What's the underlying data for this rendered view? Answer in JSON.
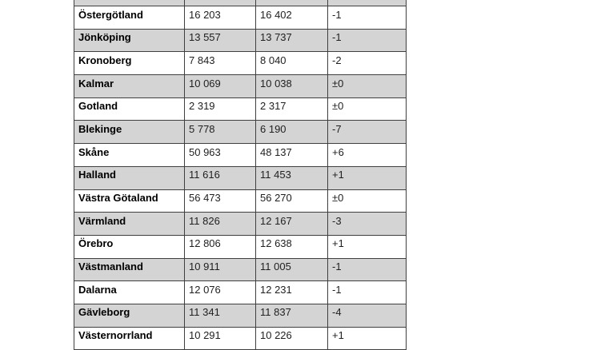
{
  "table": {
    "rows": [
      {
        "region": "Östergötland",
        "value_1": "16 203",
        "value_2": "16 402",
        "change": "-1"
      },
      {
        "region": "Jönköping",
        "value_1": "13 557",
        "value_2": "13 737",
        "change": "-1"
      },
      {
        "region": "Kronoberg",
        "value_1": "7 843",
        "value_2": "8 040",
        "change": "-2"
      },
      {
        "region": "Kalmar",
        "value_1": "10 069",
        "value_2": "10 038",
        "change": "±0"
      },
      {
        "region": "Gotland",
        "value_1": "2 319",
        "value_2": "2 317",
        "change": "±0"
      },
      {
        "region": "Blekinge",
        "value_1": "5 778",
        "value_2": "6 190",
        "change": "-7"
      },
      {
        "region": "Skåne",
        "value_1": "50 963",
        "value_2": "48 137",
        "change": "+6"
      },
      {
        "region": "Halland",
        "value_1": "11 616",
        "value_2": "11 453",
        "change": "+1"
      },
      {
        "region": "Västra Götaland",
        "value_1": "56 473",
        "value_2": "56 270",
        "change": "±0"
      },
      {
        "region": "Värmland",
        "value_1": "11 826",
        "value_2": "12 167",
        "change": "-3"
      },
      {
        "region": "Örebro",
        "value_1": "12 806",
        "value_2": "12 638",
        "change": "+1"
      },
      {
        "region": "Västmanland",
        "value_1": "10 911",
        "value_2": "11 005",
        "change": "-1"
      },
      {
        "region": "Dalarna",
        "value_1": "12 076",
        "value_2": "12 231",
        "change": "-1"
      },
      {
        "region": "Gävleborg",
        "value_1": "11 341",
        "value_2": "11 837",
        "change": "-4"
      },
      {
        "region": "Västernorrland",
        "value_1": "10 291",
        "value_2": "10 226",
        "change": "+1"
      }
    ]
  },
  "colors": {
    "row_shade": "#d4d4d4",
    "border": "#3f3f3f",
    "text": "#1f1f1f",
    "background": "#ffffff"
  }
}
